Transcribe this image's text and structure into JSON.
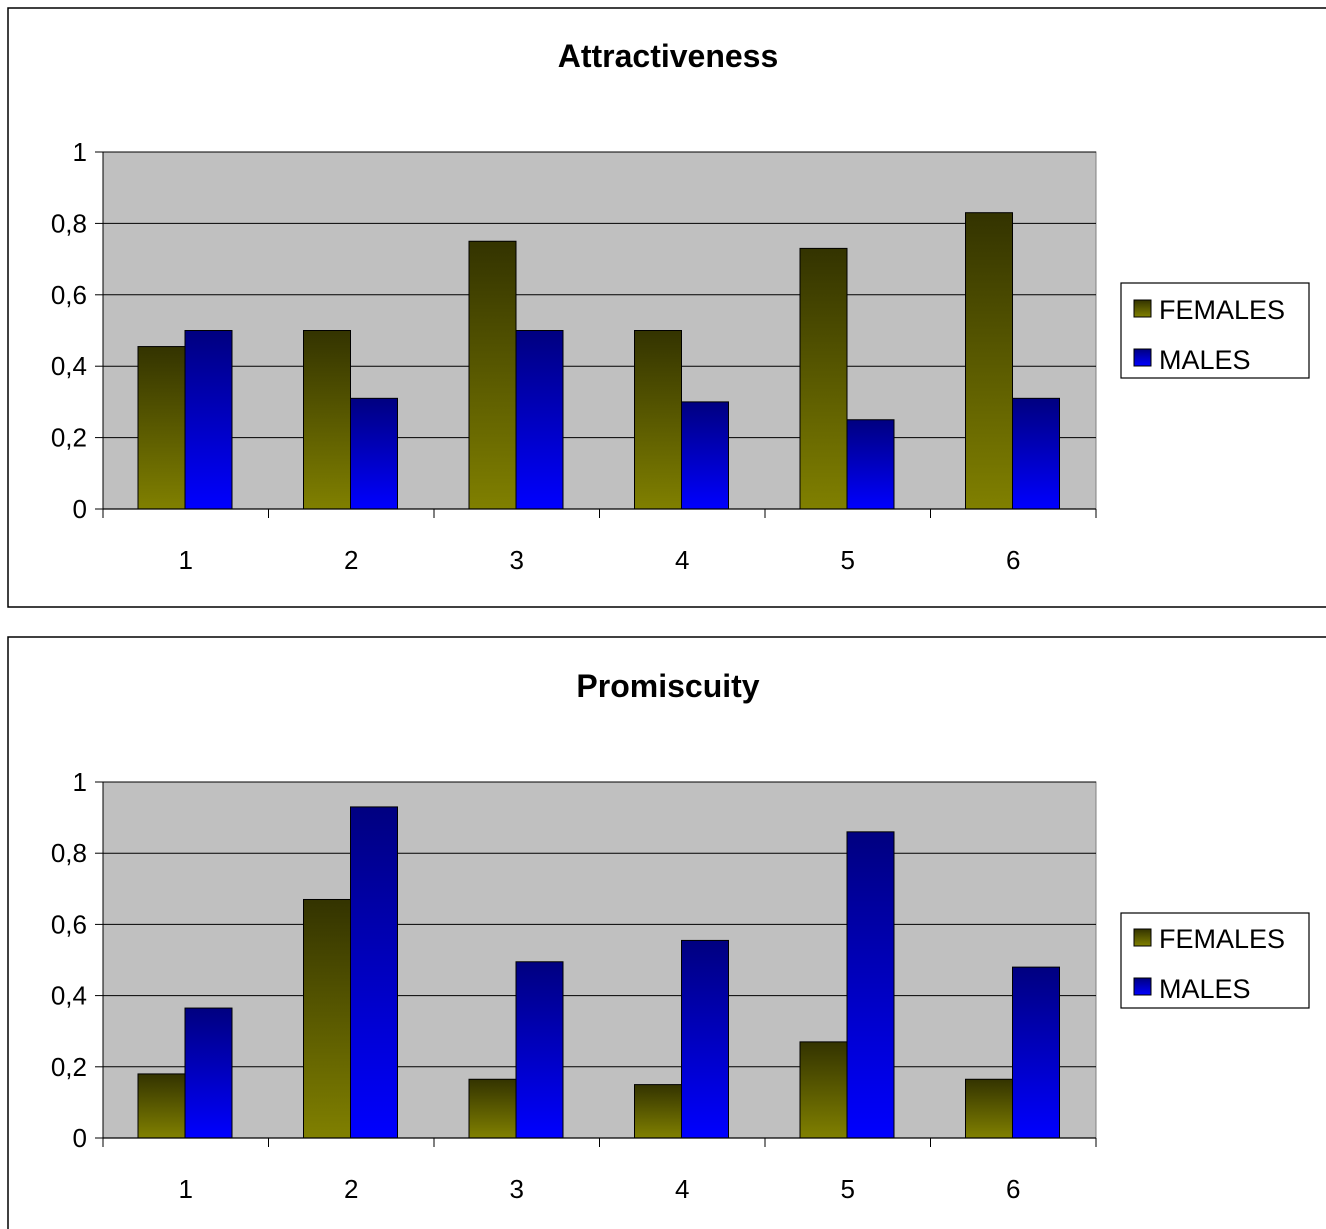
{
  "chart_data": [
    {
      "type": "bar",
      "title": "Attractiveness",
      "xlabel": "",
      "ylabel": "",
      "ylim": [
        0,
        1
      ],
      "y_ticks": [
        "0",
        "0,2",
        "0,4",
        "0,6",
        "0,8",
        "1"
      ],
      "grid": true,
      "legend_position": "right",
      "categories": [
        "1",
        "2",
        "3",
        "4",
        "5",
        "6"
      ],
      "series": [
        {
          "name": "FEMALES",
          "color": "#808000",
          "values": [
            0.455,
            0.5,
            0.75,
            0.5,
            0.73,
            0.83
          ]
        },
        {
          "name": "MALES",
          "color": "#0000ff",
          "values": [
            0.5,
            0.31,
            0.5,
            0.3,
            0.25,
            0.31
          ]
        }
      ]
    },
    {
      "type": "bar",
      "title": "Promiscuity",
      "xlabel": "",
      "ylabel": "",
      "ylim": [
        0,
        1
      ],
      "y_ticks": [
        "0",
        "0,2",
        "0,4",
        "0,6",
        "0,8",
        "1"
      ],
      "grid": true,
      "legend_position": "right",
      "categories": [
        "1",
        "2",
        "3",
        "4",
        "5",
        "6"
      ],
      "series": [
        {
          "name": "FEMALES",
          "color": "#808000",
          "values": [
            0.18,
            0.67,
            0.165,
            0.15,
            0.27,
            0.165
          ]
        },
        {
          "name": "MALES",
          "color": "#0000ff",
          "values": [
            0.365,
            0.93,
            0.495,
            0.555,
            0.86,
            0.48
          ]
        }
      ]
    }
  ]
}
